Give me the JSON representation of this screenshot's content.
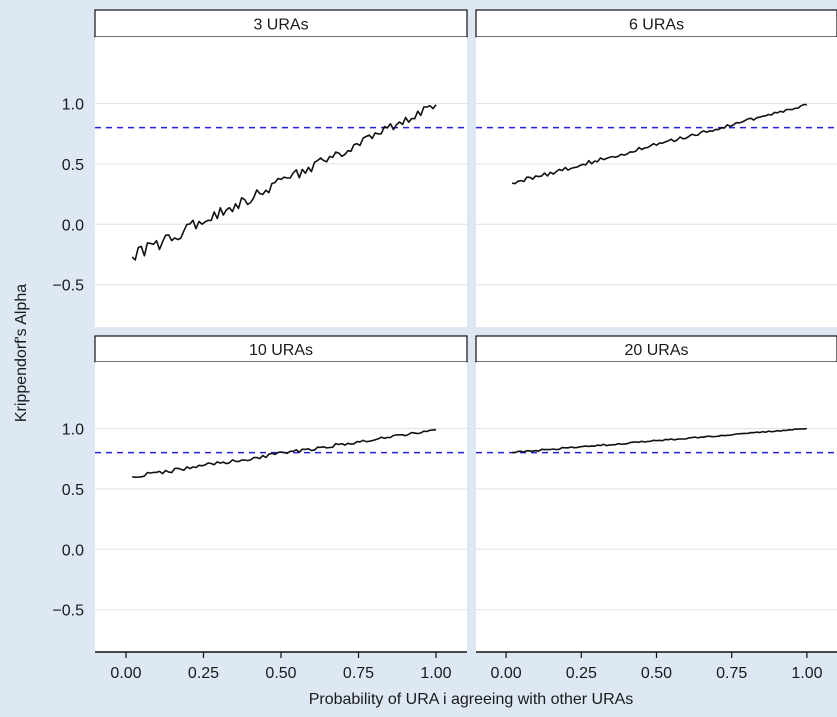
{
  "chart_data": {
    "type": "line",
    "xlabel": "Probability of URA i agreeing with other URAs",
    "ylabel": "Krippendorf's Alpha",
    "xlim": [
      -0.1,
      1.1
    ],
    "ylim": [
      -0.85,
      1.55
    ],
    "x_ticks": [
      0.0,
      0.25,
      0.5,
      0.75,
      1.0
    ],
    "x_tick_labels": [
      "0.00",
      "0.25",
      "0.50",
      "0.75",
      "1.00"
    ],
    "y_ticks": [
      -0.5,
      0.0,
      0.5,
      1.0
    ],
    "y_tick_labels": [
      "−0.5",
      "0.0",
      "0.5",
      "1.0"
    ],
    "reference_line": {
      "y": 0.8,
      "style": "dashed",
      "color": "#2222dd"
    },
    "grid": true,
    "line_color": "#111111",
    "panels": [
      {
        "title": "3 URAs",
        "start": -0.27,
        "end": 0.99,
        "noise": 0.06
      },
      {
        "title": "6 URAs",
        "start": 0.34,
        "end": 0.99,
        "noise": 0.02
      },
      {
        "title": "10 URAs",
        "start": 0.6,
        "end": 0.99,
        "noise": 0.02
      },
      {
        "title": "20 URAs",
        "start": 0.8,
        "end": 1.0,
        "noise": 0.008
      }
    ]
  }
}
